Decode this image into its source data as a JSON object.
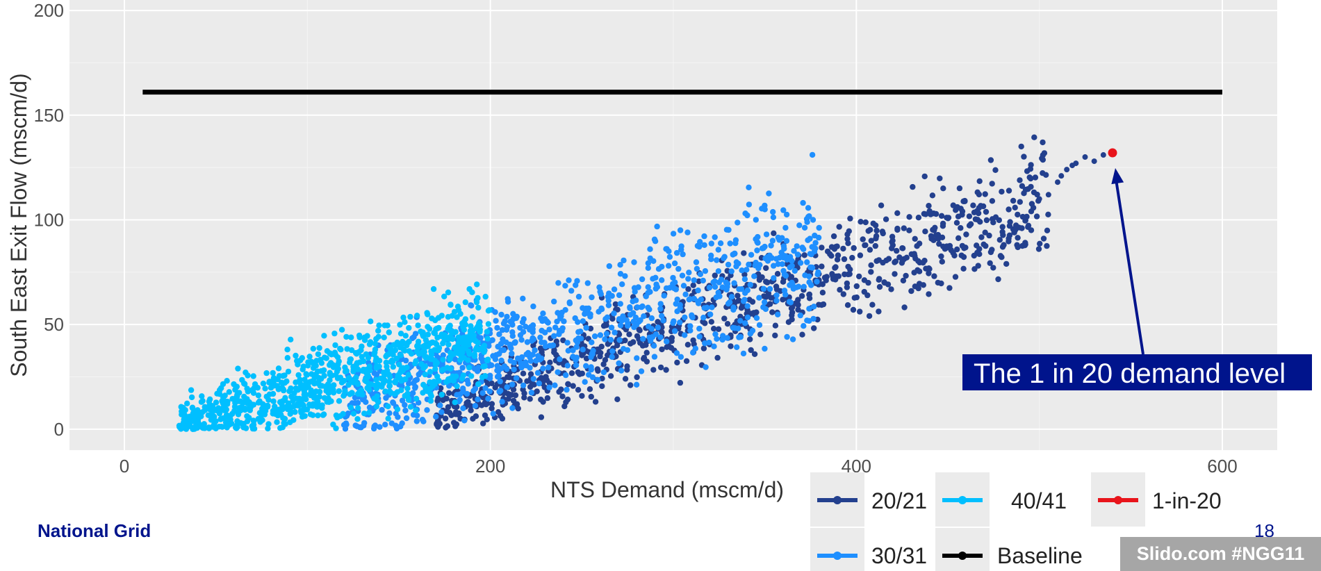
{
  "chart_data": {
    "type": "scatter",
    "title": "",
    "xlabel": "NTS Demand (mscm/d)",
    "ylabel": "South East Exit Flow (mscm/d)",
    "xlim": [
      -30,
      630
    ],
    "ylim": [
      -10,
      205
    ],
    "xticks": [
      0,
      200,
      400,
      600
    ],
    "yticks": [
      0,
      50,
      100,
      150,
      200
    ],
    "grid": true,
    "legend_position": "bottom-right",
    "series": [
      {
        "name": "20/21",
        "color": "#23408e",
        "kind": "points",
        "band": {
          "x_start": 170,
          "x_end": 505,
          "y_at_start": 8,
          "y_at_end": 110,
          "spread": 14,
          "count": 900
        },
        "tail_points": [
          [
            500,
            110
          ],
          [
            505,
            112
          ],
          [
            510,
            118
          ],
          [
            515,
            124
          ],
          [
            520,
            127
          ],
          [
            525,
            130
          ],
          [
            530,
            128
          ],
          [
            535,
            131
          ],
          [
            518,
            126
          ],
          [
            512,
            121
          ]
        ]
      },
      {
        "name": "30/31",
        "color": "#1e8fff",
        "kind": "points",
        "band": {
          "x_start": 120,
          "x_end": 380,
          "y_at_start": 12,
          "y_at_end": 85,
          "spread": 18,
          "count": 900
        }
      },
      {
        "name": "40/41",
        "color": "#00bfff",
        "kind": "points",
        "band": {
          "x_start": 30,
          "x_end": 200,
          "y_at_start": 2,
          "y_at_end": 45,
          "spread": 12,
          "count": 900
        }
      },
      {
        "name": "Baseline",
        "color": "#000000",
        "kind": "line",
        "points": [
          [
            10,
            161
          ],
          [
            600,
            161
          ]
        ]
      },
      {
        "name": "1-in-20",
        "color": "#e8141b",
        "kind": "points",
        "points": [
          [
            540,
            132
          ]
        ]
      }
    ],
    "annotations": [
      {
        "text": "The 1 in 20 demand level",
        "target": [
          540,
          132
        ]
      }
    ]
  },
  "legend": {
    "items": [
      {
        "label": "20/21",
        "color": "#23408e"
      },
      {
        "label": "40/41",
        "color": "#00bfff"
      },
      {
        "label": "1-in-20",
        "color": "#e8141b"
      },
      {
        "label": "30/31",
        "color": "#1e8fff"
      },
      {
        "label": "Baseline",
        "color": "#000000"
      }
    ]
  },
  "footer": {
    "brand": "National Grid",
    "page_number": "18",
    "hashtag": "Slido.com #NGG11"
  }
}
